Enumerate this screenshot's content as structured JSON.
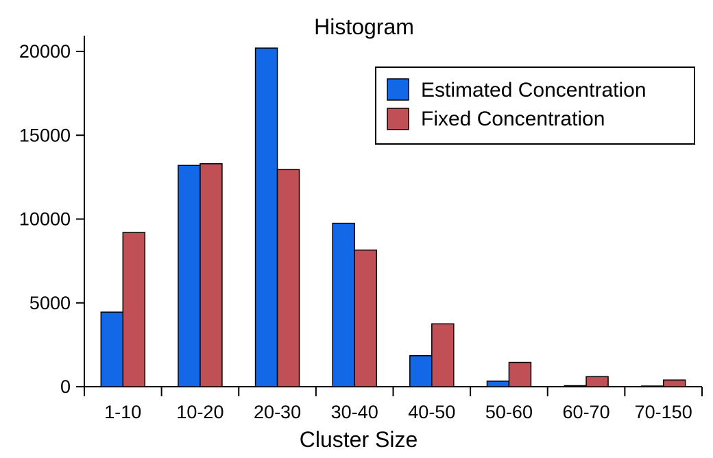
{
  "chart_data": {
    "type": "bar",
    "title": "Histogram",
    "xlabel": "Cluster Size",
    "ylabel": "",
    "categories": [
      "1-10",
      "10-20",
      "20-30",
      "30-40",
      "40-50",
      "50-60",
      "60-70",
      "70-150"
    ],
    "series": [
      {
        "name": "Estimated Concentration",
        "color": "#1368e8",
        "values": [
          4450,
          13200,
          20200,
          9750,
          1850,
          330,
          60,
          40
        ]
      },
      {
        "name": "Fixed Concentration",
        "color": "#c05055",
        "values": [
          9200,
          13300,
          12950,
          8150,
          3750,
          1450,
          600,
          400
        ]
      }
    ],
    "ylim": [
      0,
      20000
    ],
    "yticks": [
      "0",
      "5000",
      "10000",
      "15000",
      "20000"
    ],
    "legend_position": "top-right",
    "grid": false
  }
}
